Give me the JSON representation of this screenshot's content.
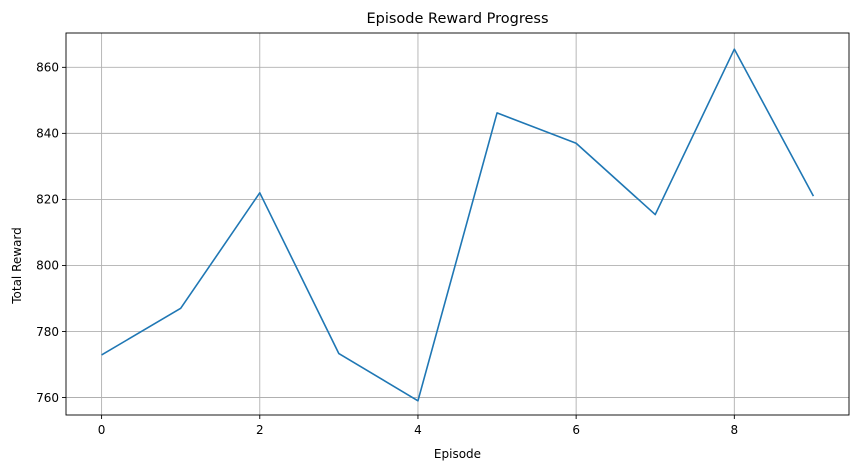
{
  "chart_data": {
    "type": "line",
    "title": "Episode Reward Progress",
    "xlabel": "Episode",
    "ylabel": "Total Reward",
    "xlim": [
      -0.45,
      9.45
    ],
    "ylim": [
      754.7,
      870.4
    ],
    "xticks": [
      0,
      2,
      4,
      6,
      8
    ],
    "yticks": [
      760,
      780,
      800,
      820,
      840,
      860
    ],
    "grid": true,
    "legend": "none",
    "series": [
      {
        "color": "#1f77b4",
        "x": [
          0,
          1,
          2,
          3,
          4,
          5,
          6,
          7,
          8,
          9
        ],
        "values": [
          772.9,
          787.0,
          822.0,
          773.3,
          759.0,
          846.2,
          837.0,
          815.4,
          865.5,
          821.0
        ]
      }
    ]
  }
}
